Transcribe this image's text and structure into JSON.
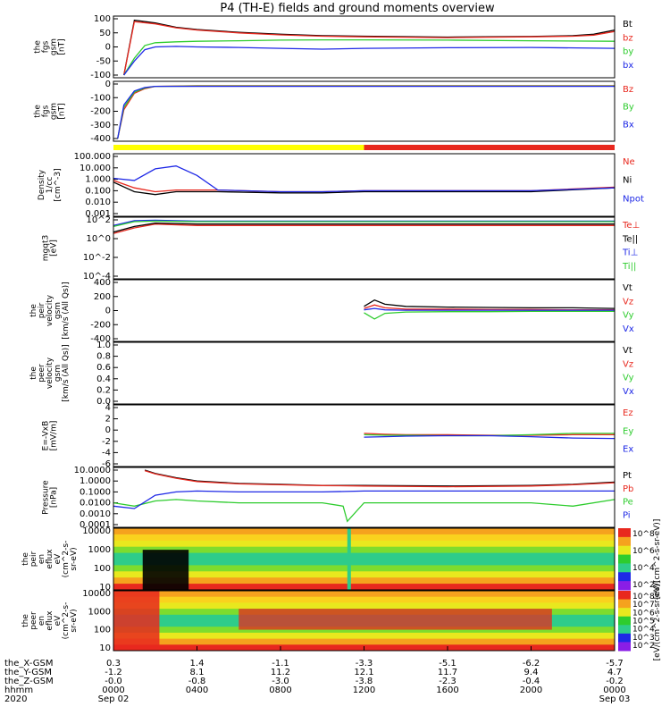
{
  "title": "P4 (TH-E) fields and ground moments overview",
  "colors": {
    "black": "#000000",
    "red": "#e8281e",
    "green": "#2ecc2e",
    "blue": "#1e28e6",
    "yellow": "#ffff00",
    "tier2": "#f5f51e"
  },
  "chart_data": {
    "type": "line",
    "time_axis": {
      "span": [
        "2020-09-02 00:00",
        "2020-09-03 00:00"
      ],
      "rows": [
        {
          "label": "the_X-GSM",
          "values": [
            "0.3",
            "1.4",
            "-1.1",
            "-3.3",
            "-5.1",
            "-6.2",
            "-5.7"
          ]
        },
        {
          "label": "the_Y-GSM",
          "values": [
            "-1.2",
            "8.1",
            "11.2",
            "12.1",
            "11.7",
            "9.4",
            "4.7"
          ]
        },
        {
          "label": "the_Z-GSM",
          "values": [
            "-0.0",
            "-0.8",
            "-3.0",
            "-3.8",
            "-2.3",
            "-0.4",
            "-0.2"
          ]
        },
        {
          "label": "hhmm",
          "values": [
            "0000",
            "0400",
            "0800",
            "1200",
            "1600",
            "2000",
            "0000"
          ]
        },
        {
          "label": "2020",
          "values": [
            "Sep 02",
            "",
            "",
            "",
            "",
            "",
            "Sep 03"
          ]
        }
      ]
    },
    "panels": [
      {
        "id": "b-fgs",
        "ylabel": [
          "the",
          "fgs",
          "gsm",
          "[nT]"
        ],
        "ylim": [
          -100,
          100
        ],
        "yticks": [
          "100",
          "50",
          "0",
          "-50",
          "-100"
        ],
        "series": [
          {
            "name": "Bt",
            "color": "black",
            "x": [
              0.5,
              1,
              2,
              3,
              4,
              6,
              8,
              10,
              12,
              16,
              20,
              22,
              23,
              24
            ],
            "y": [
              -100,
              95,
              85,
              70,
              62,
              52,
              45,
              40,
              38,
              35,
              37,
              40,
              45,
              60
            ]
          },
          {
            "name": "bz",
            "color": "red",
            "x": [
              0.5,
              1,
              2,
              3,
              4,
              6,
              8,
              10,
              12,
              16,
              20,
              22,
              23,
              24
            ],
            "y": [
              -100,
              90,
              82,
              68,
              60,
              50,
              43,
              38,
              36,
              33,
              36,
              38,
              42,
              55
            ]
          },
          {
            "name": "by",
            "color": "green",
            "x": [
              0.5,
              1,
              1.5,
              2,
              3,
              4,
              6,
              8,
              10,
              12,
              16,
              20,
              24
            ],
            "y": [
              -100,
              -40,
              5,
              15,
              18,
              20,
              22,
              24,
              25,
              25,
              24,
              22,
              20
            ]
          },
          {
            "name": "bx",
            "color": "blue",
            "x": [
              0.5,
              1,
              1.5,
              2,
              3,
              4,
              6,
              8,
              10,
              12,
              16,
              20,
              24
            ],
            "y": [
              -100,
              -50,
              -10,
              0,
              2,
              0,
              -2,
              -5,
              -8,
              -5,
              -3,
              -2,
              -5
            ]
          }
        ]
      },
      {
        "id": "b-fgs-zoom",
        "ylabel": [
          "the",
          "fgs",
          "gsm",
          "[nT]"
        ],
        "ylim": [
          -450,
          20
        ],
        "yticks": [
          "0",
          "-100",
          "-200",
          "-300",
          "-400"
        ],
        "series": [
          {
            "name": "Bz",
            "color": "red",
            "x": [
              0.2,
              0.5,
              1,
              1.5,
              2,
              4,
              8,
              12,
              16,
              20,
              24
            ],
            "y": [
              -450,
              -200,
              -60,
              -20,
              0,
              5,
              5,
              5,
              5,
              5,
              5
            ]
          },
          {
            "name": "By",
            "color": "green",
            "x": [
              0.2,
              0.5,
              1,
              1.5,
              2,
              4,
              8,
              12,
              16,
              20,
              24
            ],
            "y": [
              -450,
              -180,
              -50,
              -15,
              0,
              2,
              2,
              2,
              2,
              2,
              2
            ]
          },
          {
            "name": "Bx",
            "color": "blue",
            "x": [
              0.2,
              0.5,
              1,
              1.5,
              2,
              4,
              8,
              12,
              16,
              20,
              24
            ],
            "y": [
              -450,
              -160,
              -40,
              -10,
              0,
              0,
              0,
              0,
              0,
              0,
              0
            ]
          }
        ]
      },
      {
        "id": "density",
        "ylabel": [
          "Density",
          "1/cc",
          "[cm^-3]"
        ],
        "ylog": [
          0.001,
          1000
        ],
        "yticks": [
          "100.000",
          "10.000",
          "1.000",
          "0.100",
          "0.010",
          "0.001"
        ],
        "series": [
          {
            "name": "Ne",
            "color": "red",
            "x": [
              0,
              1,
              2,
              3,
              5,
              8,
              10,
              12,
              16,
              20,
              24
            ],
            "y": [
              3,
              0.5,
              0.2,
              0.3,
              0.3,
              0.2,
              0.2,
              0.25,
              0.25,
              0.25,
              0.6
            ]
          },
          {
            "name": "Ni",
            "color": "black",
            "x": [
              0,
              1,
              2,
              3,
              5,
              8,
              10,
              12,
              16,
              20,
              24
            ],
            "y": [
              2,
              0.2,
              0.1,
              0.2,
              0.2,
              0.15,
              0.15,
              0.2,
              0.2,
              0.2,
              0.5
            ]
          },
          {
            "name": "Npot",
            "color": "blue",
            "x": [
              0,
              1,
              2,
              3,
              4,
              5,
              8,
              10,
              12,
              16,
              20,
              24
            ],
            "y": [
              5,
              3,
              50,
              100,
              10,
              0.3,
              0.2,
              0.2,
              0.25,
              0.25,
              0.25,
              0.5
            ]
          }
        ]
      },
      {
        "id": "temperature",
        "ylabel": [
          "mgqt3",
          "[eV]"
        ],
        "ylog": [
          0.0001,
          1000
        ],
        "yticks": [
          "10^2",
          "10^0",
          "10^-2",
          "10^-4"
        ],
        "series": [
          {
            "name": "Te⊥",
            "color": "red",
            "x": [
              0,
              1,
              2,
              4,
              8,
              12,
              16,
              20,
              24
            ],
            "y": [
              20,
              100,
              300,
              200,
              200,
              200,
              200,
              200,
              200
            ]
          },
          {
            "name": "Te||",
            "color": "black",
            "x": [
              0,
              1,
              2,
              4,
              8,
              12,
              16,
              20,
              24
            ],
            "y": [
              30,
              150,
              400,
              300,
              300,
              300,
              300,
              300,
              300
            ]
          },
          {
            "name": "Ti⊥",
            "color": "blue",
            "x": [
              0,
              1,
              2,
              4,
              8,
              12,
              16,
              20,
              24
            ],
            "y": [
              200,
              800,
              900,
              700,
              700,
              700,
              700,
              700,
              700
            ]
          },
          {
            "name": "Ti||",
            "color": "green",
            "x": [
              0,
              1,
              2,
              4,
              8,
              12,
              16,
              20,
              24
            ],
            "y": [
              150,
              600,
              700,
              600,
              600,
              600,
              600,
              600,
              600
            ]
          }
        ]
      },
      {
        "id": "peir-velocity",
        "ylabel": [
          "the",
          "peir",
          "velocity",
          "gsm",
          "[km/s (All Qs)]"
        ],
        "ylim": [
          -400,
          400
        ],
        "yticks": [
          "400",
          "200",
          "0",
          "-200",
          "-400"
        ],
        "series": [
          {
            "name": "Vt",
            "color": "black",
            "x": [
              12,
              12.5,
              13,
              14,
              16,
              18,
              20,
              22,
              24
            ],
            "y": [
              60,
              150,
              90,
              60,
              50,
              45,
              40,
              40,
              30
            ]
          },
          {
            "name": "Vz",
            "color": "red",
            "x": [
              12,
              12.5,
              13,
              14,
              16,
              18,
              20,
              22,
              24
            ],
            "y": [
              30,
              80,
              40,
              20,
              20,
              15,
              15,
              10,
              10
            ]
          },
          {
            "name": "Vy",
            "color": "green",
            "x": [
              12,
              12.5,
              13,
              14,
              16,
              18,
              20,
              22,
              24
            ],
            "y": [
              -30,
              -120,
              -40,
              -20,
              -15,
              -15,
              -10,
              -10,
              -10
            ]
          },
          {
            "name": "Vx",
            "color": "blue",
            "x": [
              12,
              12.5,
              13,
              14,
              16,
              18,
              20,
              22,
              24
            ],
            "y": [
              10,
              30,
              10,
              5,
              5,
              5,
              5,
              5,
              5
            ]
          }
        ]
      },
      {
        "id": "peer-velocity",
        "ylabel": [
          "the",
          "peer",
          "velocity",
          "gsm",
          "[km/s (All Qs)]"
        ],
        "ylim": [
          0,
          1
        ],
        "yticks": [
          "1.0",
          "0.8",
          "0.6",
          "0.4",
          "0.2",
          "0.0"
        ],
        "series": [
          {
            "name": "Vt",
            "color": "black",
            "x": [],
            "y": []
          },
          {
            "name": "Vz",
            "color": "red",
            "x": [],
            "y": []
          },
          {
            "name": "Vy",
            "color": "green",
            "x": [],
            "y": []
          },
          {
            "name": "Vx",
            "color": "blue",
            "x": [],
            "y": []
          }
        ]
      },
      {
        "id": "efield",
        "ylabel": [
          "E=-VxB",
          "[mV/m]"
        ],
        "ylim": [
          -6,
          6
        ],
        "yticks": [
          "4",
          "2",
          "0",
          "-2",
          "-4",
          "-6"
        ],
        "series": [
          {
            "name": "Ez",
            "color": "red",
            "x": [
              12,
              13,
              14,
              16,
              18,
              20,
              22,
              24
            ],
            "y": [
              0.5,
              0.3,
              0.2,
              0.2,
              0.1,
              0.1,
              0.2,
              0.2
            ]
          },
          {
            "name": "Ey",
            "color": "green",
            "x": [
              12,
              13,
              14,
              16,
              18,
              20,
              22,
              24
            ],
            "y": [
              0.2,
              0.1,
              0.1,
              0,
              0,
              0.2,
              0.5,
              0.5
            ]
          },
          {
            "name": "Ex",
            "color": "blue",
            "x": [
              12,
              13,
              14,
              16,
              18,
              20,
              22,
              24
            ],
            "y": [
              -0.3,
              -0.2,
              -0.1,
              0,
              0,
              -0.2,
              -0.5,
              -0.6
            ]
          }
        ]
      },
      {
        "id": "pressure",
        "ylabel": [
          "Pressure",
          "[nPa]"
        ],
        "ylog": [
          0.0001,
          10
        ],
        "yticks": [
          "10.0000",
          "1.0000",
          "0.1000",
          "0.0100",
          "0.0010",
          "0.0001"
        ],
        "series": [
          {
            "name": "Pt",
            "color": "black",
            "x": [
              1.5,
              2,
              3,
              4,
              6,
              8,
              10,
              12,
              16,
              20,
              22,
              24
            ],
            "y": [
              10,
              5,
              2,
              1,
              0.6,
              0.5,
              0.4,
              0.4,
              0.35,
              0.4,
              0.5,
              0.8
            ]
          },
          {
            "name": "Pb",
            "color": "red",
            "x": [
              1.5,
              2,
              3,
              4,
              6,
              8,
              10,
              12,
              16,
              20,
              22,
              24
            ],
            "y": [
              9,
              4.5,
              1.8,
              0.9,
              0.55,
              0.45,
              0.38,
              0.35,
              0.3,
              0.35,
              0.45,
              0.7
            ]
          },
          {
            "name": "Pe",
            "color": "green",
            "x": [
              0,
              1,
              2,
              3,
              4,
              6,
              8,
              10,
              11,
              11.2,
              12,
              16,
              20,
              22,
              24
            ],
            "y": [
              0.01,
              0.005,
              0.015,
              0.02,
              0.015,
              0.01,
              0.01,
              0.01,
              0.005,
              0.0002,
              0.01,
              0.01,
              0.01,
              0.005,
              0.02
            ]
          },
          {
            "name": "Pi",
            "color": "blue",
            "x": [
              0,
              1,
              2,
              3,
              4,
              6,
              8,
              10,
              12,
              16,
              20,
              24
            ],
            "y": [
              0.005,
              0.003,
              0.05,
              0.1,
              0.12,
              0.1,
              0.1,
              0.1,
              0.12,
              0.12,
              0.12,
              0.12
            ]
          }
        ]
      },
      {
        "id": "peir-spectrogram",
        "type": "heatmap",
        "ylabel": [
          "the",
          "peir",
          "en",
          "eflux",
          "eV",
          "(cm^2-s-",
          "sr-eV)"
        ],
        "yticks": [
          "10000",
          "1000",
          "100",
          "10"
        ],
        "colorbar_label": "[eV/(cm^2-s-sr-eV)]",
        "colorbar_ticks": [
          "10^8",
          "10^6",
          "10^4",
          "10^2"
        ]
      },
      {
        "id": "peer-spectrogram",
        "type": "heatmap",
        "ylabel": [
          "the",
          "peer",
          "en",
          "eflux",
          "eV",
          "(cm^2-s-",
          "sr-eV)"
        ],
        "yticks": [
          "10000",
          "1000",
          "100",
          "10"
        ],
        "colorbar_label": "[eV/(cm^2-s-sr-eV)]",
        "colorbar_ticks": [
          "10^8",
          "10^7",
          "10^6",
          "10^5",
          "10^4",
          "10^3",
          "10^2"
        ]
      }
    ],
    "mode_bar": [
      {
        "from": 0,
        "to": 12,
        "color": "yellow"
      },
      {
        "from": 12,
        "to": 24,
        "color": "red"
      }
    ]
  }
}
